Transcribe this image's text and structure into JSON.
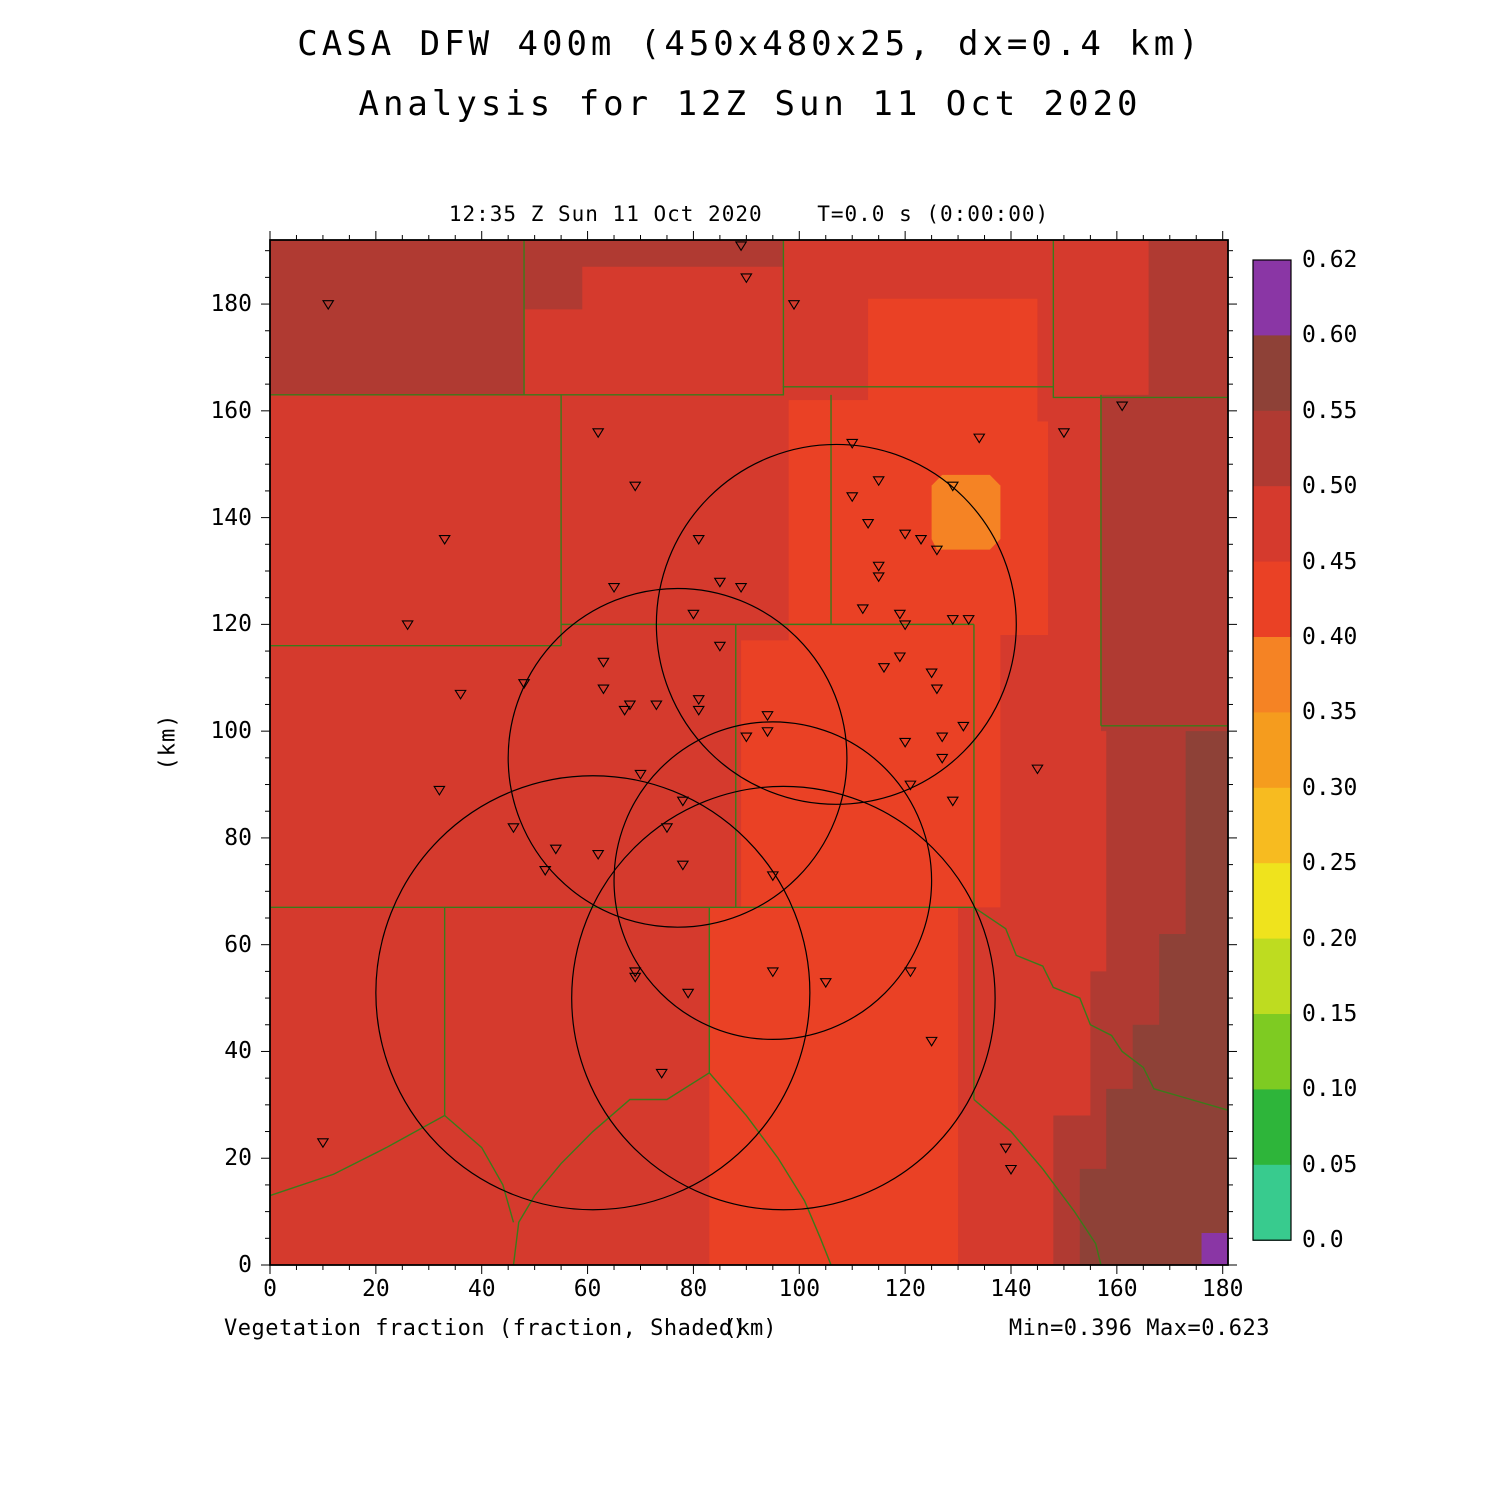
{
  "page": {
    "title_line1": "CASA DFW 400m (450x480x25, dx=0.4 km)",
    "title_line2": "Analysis for 12Z Sun 11 Oct 2020",
    "time_header": "12:35 Z Sun 11 Oct 2020    T=0.0 s (0:00:00)",
    "y_axis_label": "(km)",
    "x_axis_label": "(km)",
    "field_label": "Vegetation fraction (fraction, Shaded)",
    "minmax_label": "Min=0.396 Max=0.623"
  },
  "chart_data": {
    "type": "heatmap",
    "title": "CASA DFW 400m (450x480x25, dx=0.4 km)",
    "subtitle": "Analysis for 12Z Sun 11 Oct 2020",
    "time_label": "12:35 Z Sun 11 Oct 2020  T=0.0 s (0:00:00)",
    "field": "Vegetation fraction (fraction, Shaded)",
    "xlabel": "(km)",
    "ylabel": "(km)",
    "xlim": [
      0,
      181
    ],
    "ylim": [
      0,
      192
    ],
    "xticks": [
      0,
      20,
      40,
      60,
      80,
      100,
      120,
      140,
      160,
      180
    ],
    "yticks": [
      0,
      20,
      40,
      60,
      80,
      100,
      120,
      140,
      160,
      180
    ],
    "minor_tick_step": 5,
    "value_min": 0.396,
    "value_max": 0.623,
    "grid": false,
    "legend_position": "right-colorbar",
    "base_level": "0.45",
    "palette": {
      "0.60": "#8A36A5",
      "0.55": "#8E4137",
      "0.50": "#B03A32",
      "0.45": "#D53A2D",
      "0.40": "#EA4125",
      "0.35": "#F58324",
      "0.30": "#F59C1E",
      "0.25": "#F7BB20",
      "0.20": "#EFE31D",
      "0.15": "#BEDC20",
      "0.10": "#7ECB22",
      "0.05": "#2EB53A",
      "0.00": "#38CB8E"
    },
    "colorbar": {
      "segments_top_to_bottom": [
        "0.60",
        "0.55",
        "0.50",
        "0.45",
        "0.40",
        "0.35",
        "0.30",
        "0.25",
        "0.20",
        "0.15",
        "0.10",
        "0.05",
        "0.00"
      ],
      "tick_labels_top_to_bottom": [
        "0.62",
        "0.60",
        "0.55",
        "0.50",
        "0.45",
        "0.40",
        "0.35",
        "0.30",
        "0.25",
        "0.20",
        "0.15",
        "0.10",
        "0.05",
        "0.0"
      ]
    },
    "shaded_regions": [
      {
        "level": "0.50",
        "points": [
          [
            0,
            163
          ],
          [
            0,
            192
          ],
          [
            97,
            192
          ],
          [
            97,
            187
          ],
          [
            59,
            187
          ],
          [
            59,
            179
          ],
          [
            48,
            179
          ],
          [
            48,
            163
          ]
        ]
      },
      {
        "level": "0.50",
        "points": [
          [
            166,
            163
          ],
          [
            166,
            192
          ],
          [
            181,
            192
          ],
          [
            181,
            0
          ],
          [
            148,
            0
          ],
          [
            148,
            28
          ],
          [
            155,
            28
          ],
          [
            155,
            55
          ],
          [
            158,
            55
          ],
          [
            158,
            100
          ],
          [
            157,
            100
          ],
          [
            157,
            163
          ]
        ]
      },
      {
        "level": "0.40",
        "points": [
          [
            113,
            181
          ],
          [
            145,
            181
          ],
          [
            145,
            158
          ],
          [
            147,
            158
          ],
          [
            147,
            118
          ],
          [
            138,
            118
          ],
          [
            138,
            67
          ],
          [
            130,
            67
          ],
          [
            130,
            0
          ],
          [
            83,
            0
          ],
          [
            83,
            67
          ],
          [
            89,
            67
          ],
          [
            89,
            117
          ],
          [
            98,
            117
          ],
          [
            98,
            162
          ],
          [
            113,
            162
          ]
        ]
      },
      {
        "level": "0.55",
        "points": [
          [
            153,
            0
          ],
          [
            153,
            18
          ],
          [
            158,
            18
          ],
          [
            158,
            33
          ],
          [
            163,
            33
          ],
          [
            163,
            45
          ],
          [
            168,
            45
          ],
          [
            168,
            62
          ],
          [
            173,
            62
          ],
          [
            173,
            100
          ],
          [
            181,
            100
          ],
          [
            181,
            0
          ]
        ]
      },
      {
        "level": "0.60",
        "points": [
          [
            176,
            0
          ],
          [
            176,
            6
          ],
          [
            181,
            6
          ],
          [
            181,
            0
          ]
        ]
      },
      {
        "level": "0.35",
        "points": [
          [
            126,
            134
          ],
          [
            125,
            136
          ],
          [
            125,
            146
          ],
          [
            127,
            148
          ],
          [
            136,
            148
          ],
          [
            138,
            146
          ],
          [
            138,
            136
          ],
          [
            136,
            134
          ]
        ]
      }
    ],
    "county_line_color": "#3B7A1A",
    "county_lines": [
      [
        [
          48,
          192
        ],
        [
          48,
          163
        ]
      ],
      [
        [
          97,
          192
        ],
        [
          97,
          164.5
        ]
      ],
      [
        [
          148,
          192
        ],
        [
          148,
          164.5
        ]
      ],
      [
        [
          0,
          163
        ],
        [
          97,
          163
        ],
        [
          97,
          164.5
        ],
        [
          148,
          164.5
        ],
        [
          148,
          162.5
        ],
        [
          181,
          162.5
        ]
      ],
      [
        [
          55,
          163
        ],
        [
          55,
          116
        ]
      ],
      [
        [
          0,
          116
        ],
        [
          55,
          116
        ]
      ],
      [
        [
          55,
          120
        ],
        [
          133,
          120
        ]
      ],
      [
        [
          106,
          163
        ],
        [
          106,
          120
        ]
      ],
      [
        [
          88,
          120
        ],
        [
          88,
          67
        ]
      ],
      [
        [
          0,
          67
        ],
        [
          133,
          67
        ]
      ],
      [
        [
          133,
          120
        ],
        [
          133,
          31
        ]
      ],
      [
        [
          157,
          163
        ],
        [
          157,
          101
        ]
      ],
      [
        [
          157,
          101
        ],
        [
          181,
          101
        ]
      ],
      [
        [
          133,
          67
        ],
        [
          139,
          63
        ],
        [
          141,
          58
        ],
        [
          146,
          56
        ],
        [
          148,
          52
        ],
        [
          153,
          50
        ],
        [
          155,
          45
        ],
        [
          159,
          43
        ],
        [
          161,
          40
        ],
        [
          165,
          37
        ],
        [
          167,
          33
        ],
        [
          174,
          31
        ],
        [
          181,
          29
        ]
      ],
      [
        [
          83,
          67
        ],
        [
          83,
          36
        ],
        [
          90,
          28
        ],
        [
          96,
          20
        ],
        [
          101,
          12
        ],
        [
          104,
          5
        ],
        [
          106,
          0
        ]
      ],
      [
        [
          83,
          36
        ],
        [
          75,
          31
        ],
        [
          68,
          31
        ],
        [
          61,
          25
        ],
        [
          55,
          19
        ],
        [
          50,
          13
        ],
        [
          47,
          8
        ],
        [
          46,
          0
        ]
      ],
      [
        [
          0,
          13
        ],
        [
          12,
          17
        ],
        [
          22,
          22
        ],
        [
          33,
          28
        ]
      ],
      [
        [
          33,
          67
        ],
        [
          33,
          28
        ]
      ],
      [
        [
          33,
          28
        ],
        [
          40,
          22
        ],
        [
          44,
          15
        ],
        [
          46,
          8
        ]
      ],
      [
        [
          133,
          31
        ],
        [
          140,
          25
        ],
        [
          146,
          18
        ],
        [
          152,
          10
        ],
        [
          156,
          4
        ],
        [
          157,
          0
        ]
      ]
    ],
    "range_ring_color": "#000000",
    "radar_range_rings": [
      {
        "x": 107,
        "y": 120,
        "r": 34
      },
      {
        "x": 77,
        "y": 95,
        "r": 32
      },
      {
        "x": 95,
        "y": 72,
        "r": 30
      },
      {
        "x": 61,
        "y": 51,
        "r": 41
      },
      {
        "x": 97,
        "y": 50,
        "r": 40
      }
    ],
    "station_marker": "open-inverted-triangle",
    "station_markers": [
      [
        11,
        180
      ],
      [
        89,
        191
      ],
      [
        90,
        185
      ],
      [
        99,
        180
      ],
      [
        161,
        161
      ],
      [
        150,
        156
      ],
      [
        134,
        155
      ],
      [
        110,
        154
      ],
      [
        62,
        156
      ],
      [
        69,
        146
      ],
      [
        115,
        147
      ],
      [
        110,
        144
      ],
      [
        129,
        146
      ],
      [
        33,
        136
      ],
      [
        81,
        136
      ],
      [
        120,
        137
      ],
      [
        123,
        136
      ],
      [
        126,
        134
      ],
      [
        113,
        139
      ],
      [
        115,
        131
      ],
      [
        115,
        129
      ],
      [
        65,
        127
      ],
      [
        85,
        128
      ],
      [
        89,
        127
      ],
      [
        80,
        122
      ],
      [
        112,
        123
      ],
      [
        119,
        122
      ],
      [
        120,
        120
      ],
      [
        129,
        121
      ],
      [
        132,
        121
      ],
      [
        26,
        120
      ],
      [
        85,
        116
      ],
      [
        63,
        113
      ],
      [
        48,
        109
      ],
      [
        63,
        108
      ],
      [
        68,
        105
      ],
      [
        73,
        105
      ],
      [
        81,
        106
      ],
      [
        81,
        104
      ],
      [
        67,
        104
      ],
      [
        116,
        112
      ],
      [
        119,
        114
      ],
      [
        125,
        111
      ],
      [
        126,
        108
      ],
      [
        36,
        107
      ],
      [
        94,
        103
      ],
      [
        90,
        99
      ],
      [
        94,
        100
      ],
      [
        120,
        98
      ],
      [
        127,
        99
      ],
      [
        131,
        101
      ],
      [
        127,
        95
      ],
      [
        145,
        93
      ],
      [
        70,
        92
      ],
      [
        32,
        89
      ],
      [
        121,
        90
      ],
      [
        78,
        87
      ],
      [
        129,
        87
      ],
      [
        75,
        82
      ],
      [
        46,
        82
      ],
      [
        54,
        78
      ],
      [
        62,
        77
      ],
      [
        52,
        74
      ],
      [
        78,
        75
      ],
      [
        95,
        73
      ],
      [
        69,
        55
      ],
      [
        69,
        54
      ],
      [
        79,
        51
      ],
      [
        95,
        55
      ],
      [
        105,
        53
      ],
      [
        121,
        55
      ],
      [
        125,
        42
      ],
      [
        74,
        36
      ],
      [
        10,
        23
      ],
      [
        139,
        22
      ],
      [
        140,
        18
      ]
    ]
  }
}
